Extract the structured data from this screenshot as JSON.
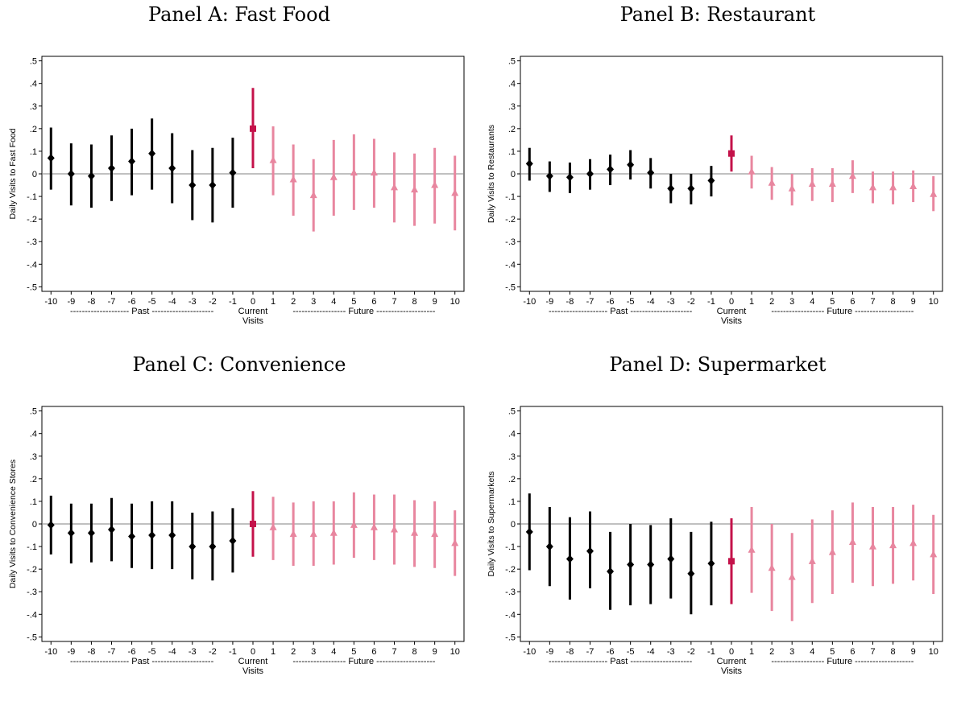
{
  "colors": {
    "past": "#000000",
    "current": "#c4124a",
    "future": "#e8869f",
    "zero_line": "#808080"
  },
  "x_section_labels": {
    "past": "-------------------- Past ---------------------",
    "current_line1": "Current",
    "current_line2": "Visits",
    "future": "------------------ Future --------------------"
  },
  "chart_data": [
    {
      "type": "scatter",
      "title": "Panel A: Fast Food",
      "ylabel": "Daily Visits to Fast Food",
      "ylim": [
        -0.52,
        0.52
      ],
      "yticks": [
        ".5",
        ".4",
        ".3",
        ".2",
        ".1",
        "0",
        "-.1",
        "-.2",
        "-.3",
        "-.4",
        "-.5"
      ],
      "x": [
        -10,
        -9,
        -8,
        -7,
        -6,
        -5,
        -4,
        -3,
        -2,
        -1,
        0,
        1,
        2,
        3,
        4,
        5,
        6,
        7,
        8,
        9,
        10
      ],
      "estimate": [
        0.07,
        0.0,
        -0.01,
        0.025,
        0.055,
        0.09,
        0.025,
        -0.05,
        -0.05,
        0.005,
        0.2,
        0.06,
        -0.025,
        -0.095,
        -0.015,
        0.005,
        0.005,
        -0.06,
        -0.07,
        -0.05,
        -0.085
      ],
      "ci_lower": [
        -0.07,
        -0.14,
        -0.15,
        -0.12,
        -0.095,
        -0.07,
        -0.13,
        -0.205,
        -0.215,
        -0.15,
        0.025,
        -0.095,
        -0.185,
        -0.255,
        -0.185,
        -0.16,
        -0.15,
        -0.215,
        -0.23,
        -0.22,
        -0.25
      ],
      "ci_upper": [
        0.205,
        0.135,
        0.13,
        0.17,
        0.2,
        0.245,
        0.18,
        0.105,
        0.115,
        0.16,
        0.38,
        0.21,
        0.13,
        0.065,
        0.15,
        0.175,
        0.155,
        0.095,
        0.09,
        0.115,
        0.08
      ],
      "grid": false,
      "legend": "none"
    },
    {
      "type": "scatter",
      "title": "Panel B: Restaurant",
      "ylabel": "Daily Visits to Restaurants",
      "ylim": [
        -0.52,
        0.52
      ],
      "yticks": [
        ".5",
        ".4",
        ".3",
        ".2",
        ".1",
        "0",
        "-.1",
        "-.2",
        "-.3",
        "-.4",
        "-.5"
      ],
      "x": [
        -10,
        -9,
        -8,
        -7,
        -6,
        -5,
        -4,
        -3,
        -2,
        -1,
        0,
        1,
        2,
        3,
        4,
        5,
        6,
        7,
        8,
        9,
        10
      ],
      "estimate": [
        0.045,
        -0.01,
        -0.015,
        0.0,
        0.02,
        0.04,
        0.005,
        -0.065,
        -0.065,
        -0.03,
        0.09,
        0.01,
        -0.04,
        -0.065,
        -0.045,
        -0.045,
        -0.01,
        -0.06,
        -0.06,
        -0.055,
        -0.09
      ],
      "ci_lower": [
        -0.03,
        -0.08,
        -0.085,
        -0.07,
        -0.05,
        -0.025,
        -0.065,
        -0.13,
        -0.135,
        -0.1,
        0.01,
        -0.065,
        -0.115,
        -0.14,
        -0.12,
        -0.125,
        -0.085,
        -0.13,
        -0.135,
        -0.125,
        -0.165
      ],
      "ci_upper": [
        0.115,
        0.055,
        0.05,
        0.065,
        0.085,
        0.105,
        0.07,
        0.0,
        0.0,
        0.035,
        0.17,
        0.08,
        0.03,
        0.0,
        0.025,
        0.025,
        0.06,
        0.01,
        0.01,
        0.015,
        -0.01
      ],
      "grid": false,
      "legend": "none"
    },
    {
      "type": "scatter",
      "title": "Panel C: Convenience",
      "ylabel": "Daily Visits to Convenience Stores",
      "ylim": [
        -0.52,
        0.52
      ],
      "yticks": [
        ".5",
        ".4",
        ".3",
        ".2",
        ".1",
        "0",
        "-.1",
        "-.2",
        "-.3",
        "-.4",
        "-.5"
      ],
      "x": [
        -10,
        -9,
        -8,
        -7,
        -6,
        -5,
        -4,
        -3,
        -2,
        -1,
        0,
        1,
        2,
        3,
        4,
        5,
        6,
        7,
        8,
        9,
        10
      ],
      "estimate": [
        -0.005,
        -0.04,
        -0.04,
        -0.025,
        -0.055,
        -0.05,
        -0.05,
        -0.1,
        -0.1,
        -0.075,
        0.0,
        -0.015,
        -0.045,
        -0.045,
        -0.04,
        -0.005,
        -0.015,
        -0.025,
        -0.04,
        -0.045,
        -0.085
      ],
      "ci_lower": [
        -0.135,
        -0.175,
        -0.17,
        -0.165,
        -0.195,
        -0.2,
        -0.2,
        -0.245,
        -0.25,
        -0.215,
        -0.145,
        -0.16,
        -0.185,
        -0.185,
        -0.18,
        -0.15,
        -0.16,
        -0.18,
        -0.19,
        -0.195,
        -0.23
      ],
      "ci_upper": [
        0.125,
        0.09,
        0.09,
        0.115,
        0.09,
        0.1,
        0.1,
        0.05,
        0.055,
        0.07,
        0.145,
        0.12,
        0.095,
        0.1,
        0.1,
        0.14,
        0.13,
        0.13,
        0.105,
        0.1,
        0.06
      ],
      "grid": false,
      "legend": "none"
    },
    {
      "type": "scatter",
      "title": "Panel D: Supermarket",
      "ylabel": "Daily Visits to Supermarkets",
      "ylim": [
        -0.52,
        0.52
      ],
      "yticks": [
        ".5",
        ".4",
        ".3",
        ".2",
        ".1",
        "0",
        "-.1",
        "-.2",
        "-.3",
        "-.4",
        "-.5"
      ],
      "x": [
        -10,
        -9,
        -8,
        -7,
        -6,
        -5,
        -4,
        -3,
        -2,
        -1,
        0,
        1,
        2,
        3,
        4,
        5,
        6,
        7,
        8,
        9,
        10
      ],
      "estimate": [
        -0.035,
        -0.1,
        -0.155,
        -0.12,
        -0.21,
        -0.18,
        -0.18,
        -0.155,
        -0.22,
        -0.175,
        -0.165,
        -0.115,
        -0.195,
        -0.235,
        -0.165,
        -0.125,
        -0.08,
        -0.1,
        -0.095,
        -0.085,
        -0.135
      ],
      "ci_lower": [
        -0.205,
        -0.275,
        -0.335,
        -0.285,
        -0.38,
        -0.36,
        -0.355,
        -0.33,
        -0.4,
        -0.36,
        -0.355,
        -0.305,
        -0.385,
        -0.43,
        -0.35,
        -0.31,
        -0.26,
        -0.275,
        -0.265,
        -0.25,
        -0.31
      ],
      "ci_upper": [
        0.135,
        0.075,
        0.03,
        0.055,
        -0.035,
        0.0,
        -0.005,
        0.025,
        -0.035,
        0.01,
        0.025,
        0.075,
        0.0,
        -0.04,
        0.02,
        0.06,
        0.095,
        0.075,
        0.075,
        0.085,
        0.04
      ],
      "grid": false,
      "legend": "none"
    }
  ]
}
